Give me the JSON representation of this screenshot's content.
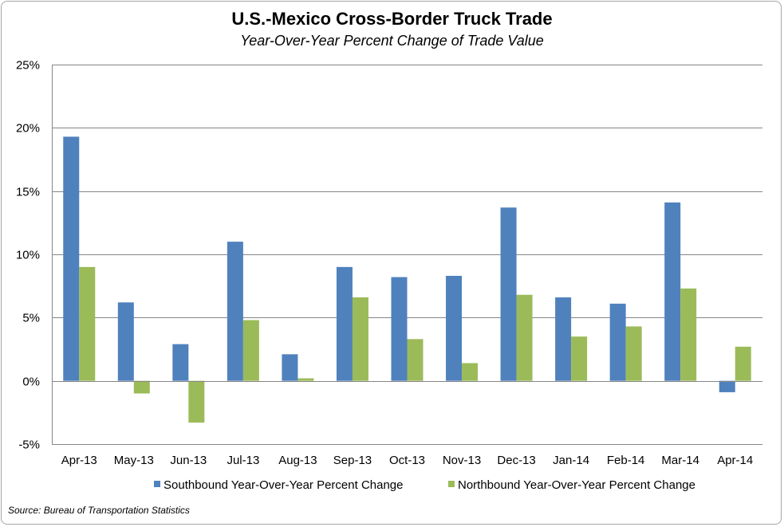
{
  "title": "U.S.-Mexico Cross-Border Truck Trade",
  "subtitle": "Year-Over-Year Percent Change of Trade Value",
  "source": "Source: Bureau of Transportation Statistics",
  "chart_data": {
    "type": "bar",
    "title": "U.S.-Mexico Cross-Border Truck Trade",
    "subtitle": "Year-Over-Year Percent Change of Trade Value",
    "categories": [
      "Apr-13",
      "May-13",
      "Jun-13",
      "Jul-13",
      "Aug-13",
      "Sep-13",
      "Oct-13",
      "Nov-13",
      "Dec-13",
      "Jan-14",
      "Feb-14",
      "Mar-14",
      "Apr-14"
    ],
    "series": [
      {
        "name": "Southbound Year-Over-Year Percent Change",
        "color": "#4f81bd",
        "values": [
          19.3,
          6.2,
          2.9,
          11.0,
          2.1,
          9.0,
          8.2,
          8.3,
          13.7,
          6.6,
          6.1,
          14.1,
          -0.9
        ]
      },
      {
        "name": "Northbound Year-Over-Year Percent Change",
        "color": "#9bbb59",
        "values": [
          9.0,
          -1.0,
          -3.3,
          4.8,
          0.2,
          6.6,
          3.3,
          1.4,
          6.8,
          3.5,
          4.3,
          7.3,
          2.7
        ]
      }
    ],
    "ylim": [
      -5,
      25
    ],
    "yticks": [
      -5,
      0,
      5,
      10,
      15,
      20,
      25
    ],
    "ytick_labels": [
      "-5%",
      "0%",
      "5%",
      "10%",
      "15%",
      "20%",
      "25%"
    ],
    "grid": true,
    "legend_position": "bottom"
  }
}
